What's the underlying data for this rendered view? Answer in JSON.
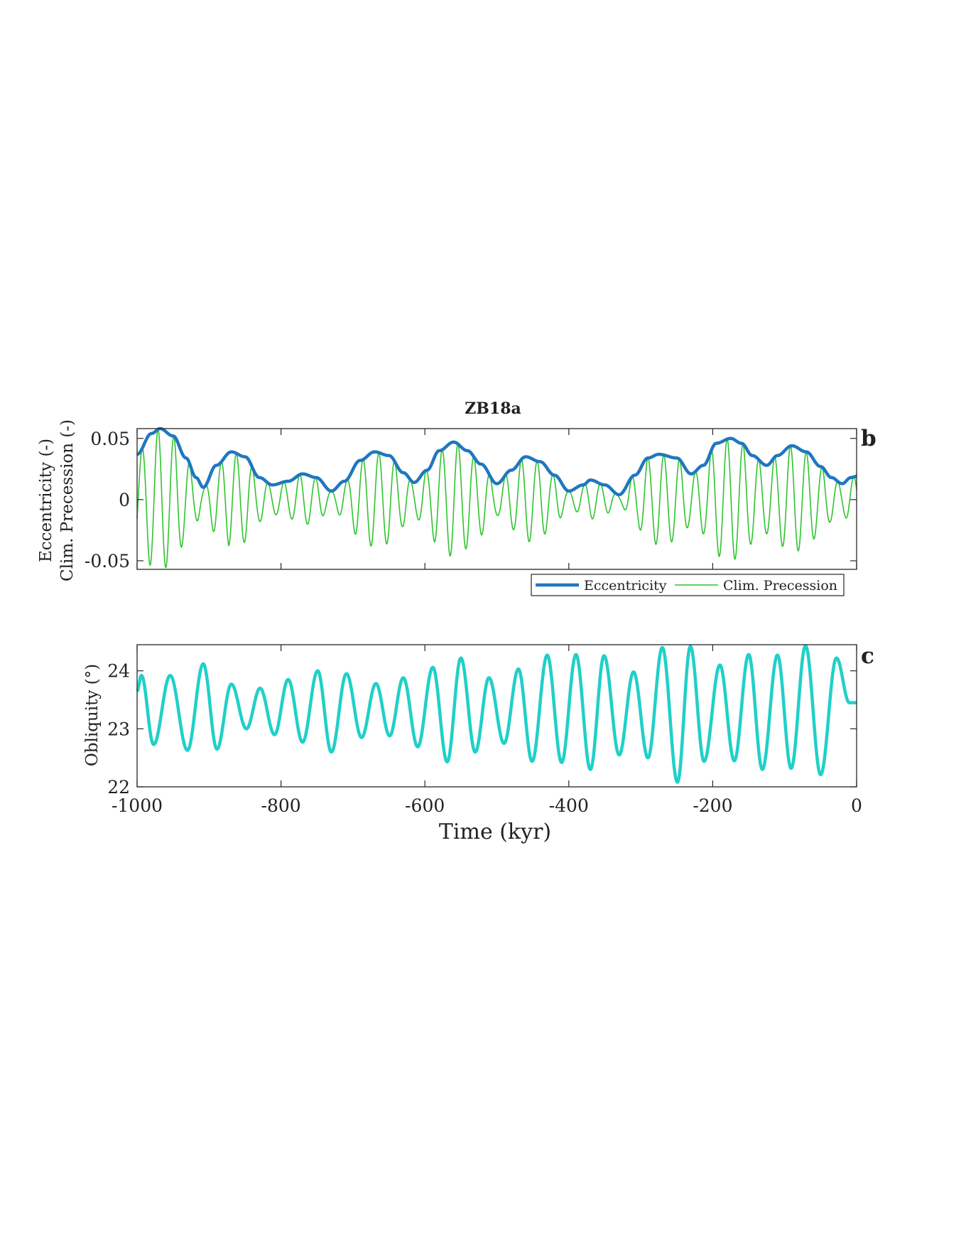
{
  "title": "ZB18a",
  "colors": {
    "eccentricity": "#1f77c0",
    "precession": "#2fc42f",
    "obliquity": "#20d0c8",
    "axis": "#262626"
  },
  "chart_data": [
    {
      "panel_label": "b",
      "type": "line",
      "title": "ZB18a",
      "ylabel_lines": [
        "Eccentricity (-)",
        "Clim. Precession (-)"
      ],
      "xlim": [
        -1000,
        0
      ],
      "ylim": [
        -0.057,
        0.058
      ],
      "yticks": [
        -0.05,
        0,
        0.05
      ],
      "ytick_labels": [
        "-0.05",
        "0",
        "0.05"
      ],
      "legend": {
        "placement": "below-right",
        "entries": [
          "Eccentricity",
          "Clim. Precession"
        ]
      },
      "series": [
        {
          "name": "Eccentricity",
          "x": [
            -1000,
            -980,
            -968,
            -950,
            -932,
            -918,
            -908,
            -890,
            -869,
            -850,
            -830,
            -812,
            -790,
            -770,
            -751,
            -730,
            -712,
            -690,
            -670,
            -650,
            -630,
            -615,
            -597,
            -580,
            -560,
            -541,
            -522,
            -500,
            -480,
            -460,
            -440,
            -420,
            -400,
            -380,
            -370,
            -350,
            -330,
            -308,
            -290,
            -275,
            -250,
            -230,
            -213,
            -195,
            -175,
            -160,
            -145,
            -125,
            -110,
            -90,
            -70,
            -50,
            -35,
            -20,
            -8,
            0
          ],
          "y": [
            0.037,
            0.054,
            0.058,
            0.052,
            0.034,
            0.018,
            0.01,
            0.028,
            0.039,
            0.035,
            0.018,
            0.012,
            0.015,
            0.021,
            0.018,
            0.007,
            0.015,
            0.032,
            0.039,
            0.036,
            0.022,
            0.014,
            0.024,
            0.04,
            0.047,
            0.04,
            0.029,
            0.013,
            0.024,
            0.035,
            0.031,
            0.02,
            0.007,
            0.012,
            0.016,
            0.012,
            0.004,
            0.02,
            0.034,
            0.037,
            0.034,
            0.021,
            0.028,
            0.046,
            0.05,
            0.046,
            0.036,
            0.028,
            0.036,
            0.044,
            0.039,
            0.027,
            0.018,
            0.013,
            0.018,
            0.019
          ]
        },
        {
          "name": "Clim. Precession",
          "period_kyr": 22,
          "peak_times": [
            -993,
            -971,
            -949,
            -927,
            -905,
            -883,
            -862,
            -840,
            -818,
            -796,
            -774,
            -752,
            -730,
            -708,
            -686,
            -664,
            -642,
            -620,
            -598,
            -576,
            -554,
            -532,
            -510,
            -488,
            -466,
            -444,
            -422,
            -400,
            -378,
            -356,
            -334,
            -312,
            -290,
            -268,
            -246,
            -224,
            -202,
            -180,
            -158,
            -136,
            -114,
            -92,
            -70,
            -48,
            -26,
            -4
          ]
        }
      ]
    },
    {
      "panel_label": "c",
      "type": "line",
      "xlabel": "Time (kyr)",
      "ylabel": "Obliquity (°)",
      "xlim": [
        -1000,
        0
      ],
      "ylim": [
        22,
        24.45
      ],
      "yticks": [
        22,
        23,
        24
      ],
      "ytick_labels": [
        "22",
        "23",
        "24"
      ],
      "xticks": [
        -1000,
        -800,
        -600,
        -400,
        -200,
        0
      ],
      "xtick_labels": [
        "-1000",
        "-800",
        "-600",
        "-400",
        "-200",
        "0"
      ],
      "series": [
        {
          "name": "Obliquity",
          "x": [
            -1000,
            -994,
            -977,
            -954,
            -930,
            -908,
            -889,
            -869,
            -848,
            -829,
            -809,
            -790,
            -770,
            -749,
            -730,
            -709,
            -688,
            -668,
            -649,
            -630,
            -610,
            -589,
            -569,
            -550,
            -530,
            -511,
            -490,
            -470,
            -451,
            -430,
            -410,
            -390,
            -370,
            -351,
            -330,
            -310,
            -290,
            -270,
            -249,
            -231,
            -212,
            -190,
            -170,
            -150,
            -131,
            -110,
            -91,
            -71,
            -50,
            -28,
            -10,
            0
          ],
          "y": [
            23.65,
            23.92,
            22.73,
            23.92,
            22.63,
            24.12,
            22.65,
            23.77,
            23.0,
            23.7,
            22.9,
            23.85,
            22.77,
            24.0,
            22.6,
            23.95,
            22.85,
            23.78,
            22.88,
            23.88,
            22.69,
            24.06,
            22.43,
            24.22,
            22.6,
            23.88,
            22.75,
            24.03,
            22.44,
            24.27,
            22.42,
            24.28,
            22.3,
            24.26,
            22.55,
            23.98,
            22.5,
            24.4,
            22.08,
            24.42,
            22.44,
            24.1,
            22.45,
            24.28,
            22.3,
            24.27,
            22.32,
            24.43,
            22.21,
            24.22,
            23.45,
            23.45
          ]
        }
      ]
    }
  ]
}
